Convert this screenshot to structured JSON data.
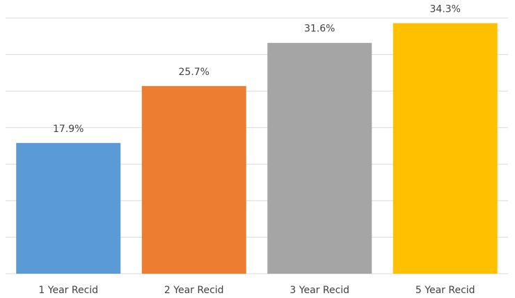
{
  "chart_data": {
    "type": "bar",
    "categories": [
      "1 Year Recid",
      "2 Year Recid",
      "3 Year Recid",
      "5 Year Recid"
    ],
    "values": [
      17.9,
      25.7,
      31.6,
      34.3
    ],
    "value_labels": [
      "17.9%",
      "25.7%",
      "31.6%",
      "34.3%"
    ],
    "colors": [
      "#5b9bd5",
      "#ed7d31",
      "#a5a5a5",
      "#ffc000"
    ],
    "ylim": [
      0,
      35
    ],
    "yticks": [
      0,
      5,
      10,
      15,
      20,
      25,
      30,
      35
    ],
    "grid": true
  }
}
